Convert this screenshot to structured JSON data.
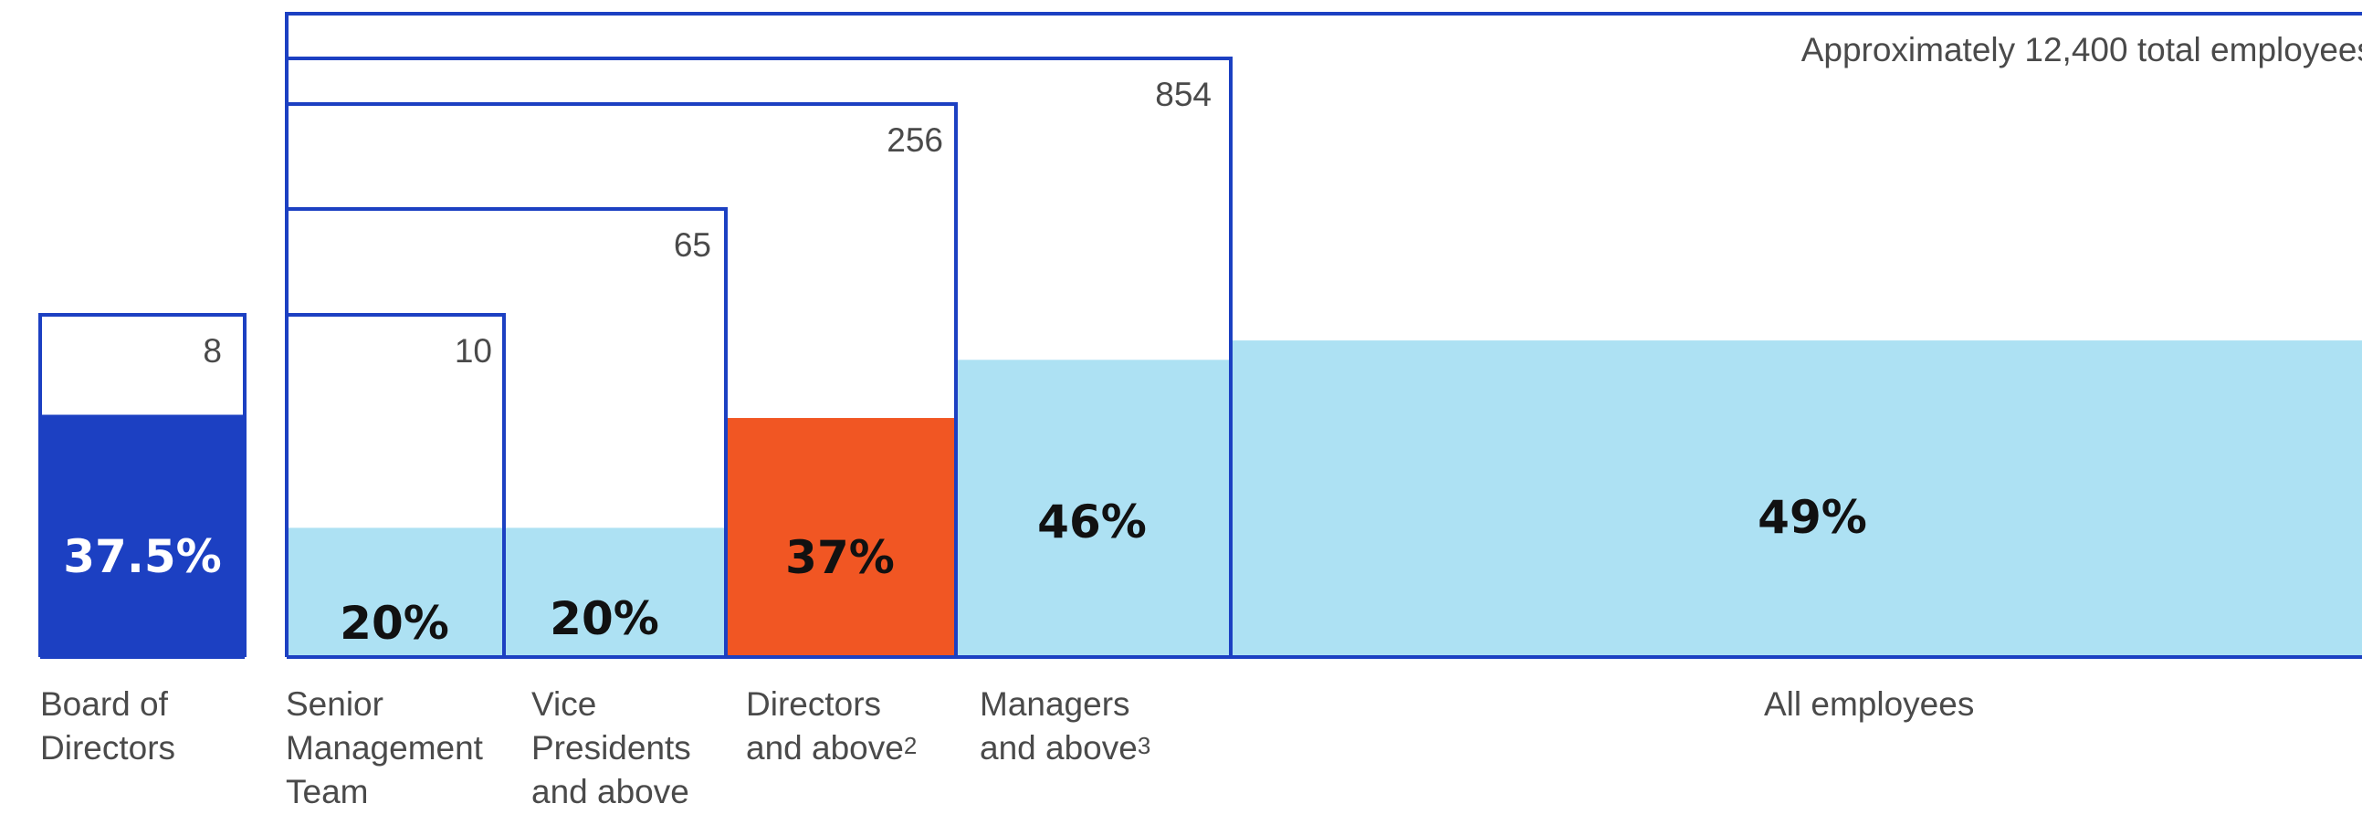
{
  "chart_data": {
    "type": "bar",
    "categories": [
      "Board of Directors",
      "Senior Management Team",
      "Vice Presidents and above",
      "Directors and above",
      "Managers and above",
      "All employees"
    ],
    "category_label_parts": [
      [
        "Board of",
        "Directors"
      ],
      [
        "Senior",
        "Management",
        "Team"
      ],
      [
        "Vice",
        "Presidents",
        "and above"
      ],
      [
        "Directors",
        "and above"
      ],
      [
        "Managers",
        "and above"
      ],
      [
        "All employees"
      ]
    ],
    "footnote_marks": [
      "",
      "",
      "",
      "2",
      "3",
      ""
    ],
    "headcounts": [
      8,
      10,
      65,
      256,
      854,
      12400
    ],
    "headcount_labels": [
      "8",
      "10",
      "65",
      "256",
      "854",
      "Approximately 12,400 total employees"
    ],
    "values": [
      37.5,
      20,
      20,
      37,
      46,
      49
    ],
    "value_labels": [
      "37.5%",
      "20%",
      "20%",
      "37%",
      "46%",
      "49%"
    ],
    "fill_colors": [
      "#1c40c2",
      "#ade1f3",
      "#ade1f3",
      "#f15623",
      "#ade1f3",
      "#ade1f3"
    ],
    "label_colors": [
      "#ffffff",
      "#111111",
      "#111111",
      "#111111",
      "#111111",
      "#111111"
    ],
    "outline_color": "#1c40c2",
    "title": "",
    "xlabel": "",
    "ylabel": "",
    "ylim": [
      0,
      100
    ]
  }
}
